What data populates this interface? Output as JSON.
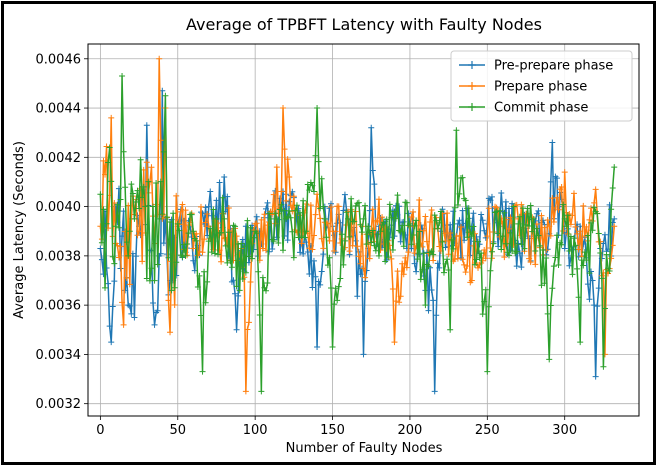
{
  "chart_data": {
    "type": "line",
    "title": "Average of TPBFT Latency with Faulty Nodes",
    "xlabel": "Number of Faulty Nodes",
    "ylabel": "Average Latency (Seconds)",
    "xlim": [
      -8,
      348
    ],
    "ylim": [
      0.00315,
      0.00466
    ],
    "x_ticks": [
      0,
      50,
      100,
      150,
      200,
      250,
      300
    ],
    "y_ticks": [
      0.0032,
      0.0034,
      0.0036,
      0.0038,
      0.004,
      0.0042,
      0.0044,
      0.0046
    ],
    "y_tick_labels": [
      "0.0032",
      "0.0034",
      "0.0036",
      "0.0038",
      "0.0040",
      "0.0042",
      "0.0044",
      "0.0046"
    ],
    "grid": true,
    "legend_position": "top-right",
    "n_points": 333,
    "series": [
      {
        "name": "Pre-prepare phase",
        "color": "#1f77b4",
        "description": "Latency per number of faulty nodes (x = 0..332); approx. anchor values observed",
        "x": [
          0,
          3,
          7,
          10,
          14,
          18,
          22,
          25,
          30,
          35,
          38,
          40,
          42,
          45,
          50,
          60,
          70,
          80,
          88,
          95,
          100,
          105,
          110,
          120,
          130,
          140,
          145,
          150,
          160,
          170,
          175,
          180,
          190,
          200,
          210,
          216,
          220,
          230,
          240,
          250,
          260,
          270,
          280,
          290,
          292,
          300,
          310,
          320,
          325,
          332
        ],
        "values": [
          0.00383,
          0.00398,
          0.00345,
          0.004,
          0.00388,
          0.0036,
          0.00355,
          0.00392,
          0.00433,
          0.00352,
          0.0038,
          0.00447,
          0.00395,
          0.0037,
          0.00392,
          0.00378,
          0.004,
          0.00412,
          0.0035,
          0.00385,
          0.0039,
          0.00383,
          0.00398,
          0.00405,
          0.00388,
          0.00343,
          0.004,
          0.00392,
          0.00398,
          0.0034,
          0.00432,
          0.00392,
          0.00388,
          0.00392,
          0.00366,
          0.00325,
          0.0039,
          0.00388,
          0.00392,
          0.00393,
          0.00398,
          0.00385,
          0.00388,
          0.00389,
          0.00426,
          0.00383,
          0.00392,
          0.00331,
          0.00385,
          0.00395
        ]
      },
      {
        "name": "Prepare phase",
        "color": "#ff7f0e",
        "description": "Latency per number of faulty nodes (x = 0..332); approx. anchor values observed",
        "x": [
          0,
          3,
          7,
          10,
          15,
          20,
          25,
          30,
          35,
          38,
          40,
          42,
          45,
          50,
          60,
          70,
          80,
          88,
          94,
          96,
          100,
          105,
          110,
          118,
          130,
          140,
          150,
          160,
          170,
          180,
          190,
          200,
          210,
          220,
          230,
          240,
          250,
          260,
          270,
          280,
          290,
          300,
          310,
          320,
          326,
          332
        ],
        "values": [
          0.00392,
          0.00413,
          0.00436,
          0.00385,
          0.00352,
          0.00395,
          0.0039,
          0.00418,
          0.00385,
          0.0046,
          0.00395,
          0.0044,
          0.00349,
          0.00393,
          0.00383,
          0.00392,
          0.00387,
          0.00388,
          0.00325,
          0.00353,
          0.00393,
          0.00383,
          0.00398,
          0.0044,
          0.00385,
          0.00405,
          0.0039,
          0.00398,
          0.00375,
          0.00403,
          0.00345,
          0.00392,
          0.00396,
          0.00382,
          0.00388,
          0.0037,
          0.00388,
          0.00393,
          0.00395,
          0.00387,
          0.00392,
          0.00414,
          0.0039,
          0.00407,
          0.0034,
          0.00392
        ]
      },
      {
        "name": "Commit phase",
        "color": "#2ca02c",
        "description": "Latency per number of faulty nodes (x = 0..332); approx. anchor values observed",
        "x": [
          0,
          3,
          6,
          10,
          14,
          18,
          22,
          28,
          33,
          38,
          42,
          46,
          50,
          55,
          60,
          66,
          70,
          80,
          90,
          100,
          104,
          110,
          120,
          130,
          140,
          145,
          150,
          160,
          170,
          180,
          190,
          200,
          210,
          220,
          226,
          230,
          240,
          250,
          256,
          260,
          270,
          280,
          290,
          300,
          310,
          320,
          325,
          332
        ],
        "values": [
          0.00405,
          0.00367,
          0.00424,
          0.00392,
          0.00453,
          0.0038,
          0.00395,
          0.00408,
          0.00375,
          0.00395,
          0.00445,
          0.00366,
          0.00393,
          0.0038,
          0.0039,
          0.00333,
          0.00386,
          0.00395,
          0.00366,
          0.0039,
          0.00325,
          0.00395,
          0.00395,
          0.00388,
          0.0044,
          0.00395,
          0.00343,
          0.00395,
          0.00395,
          0.0038,
          0.00398,
          0.00393,
          0.0036,
          0.00398,
          0.0035,
          0.00431,
          0.00388,
          0.00333,
          0.00398,
          0.00388,
          0.00393,
          0.00395,
          0.00338,
          0.00395,
          0.00345,
          0.00398,
          0.00335,
          0.00416
        ]
      }
    ]
  }
}
